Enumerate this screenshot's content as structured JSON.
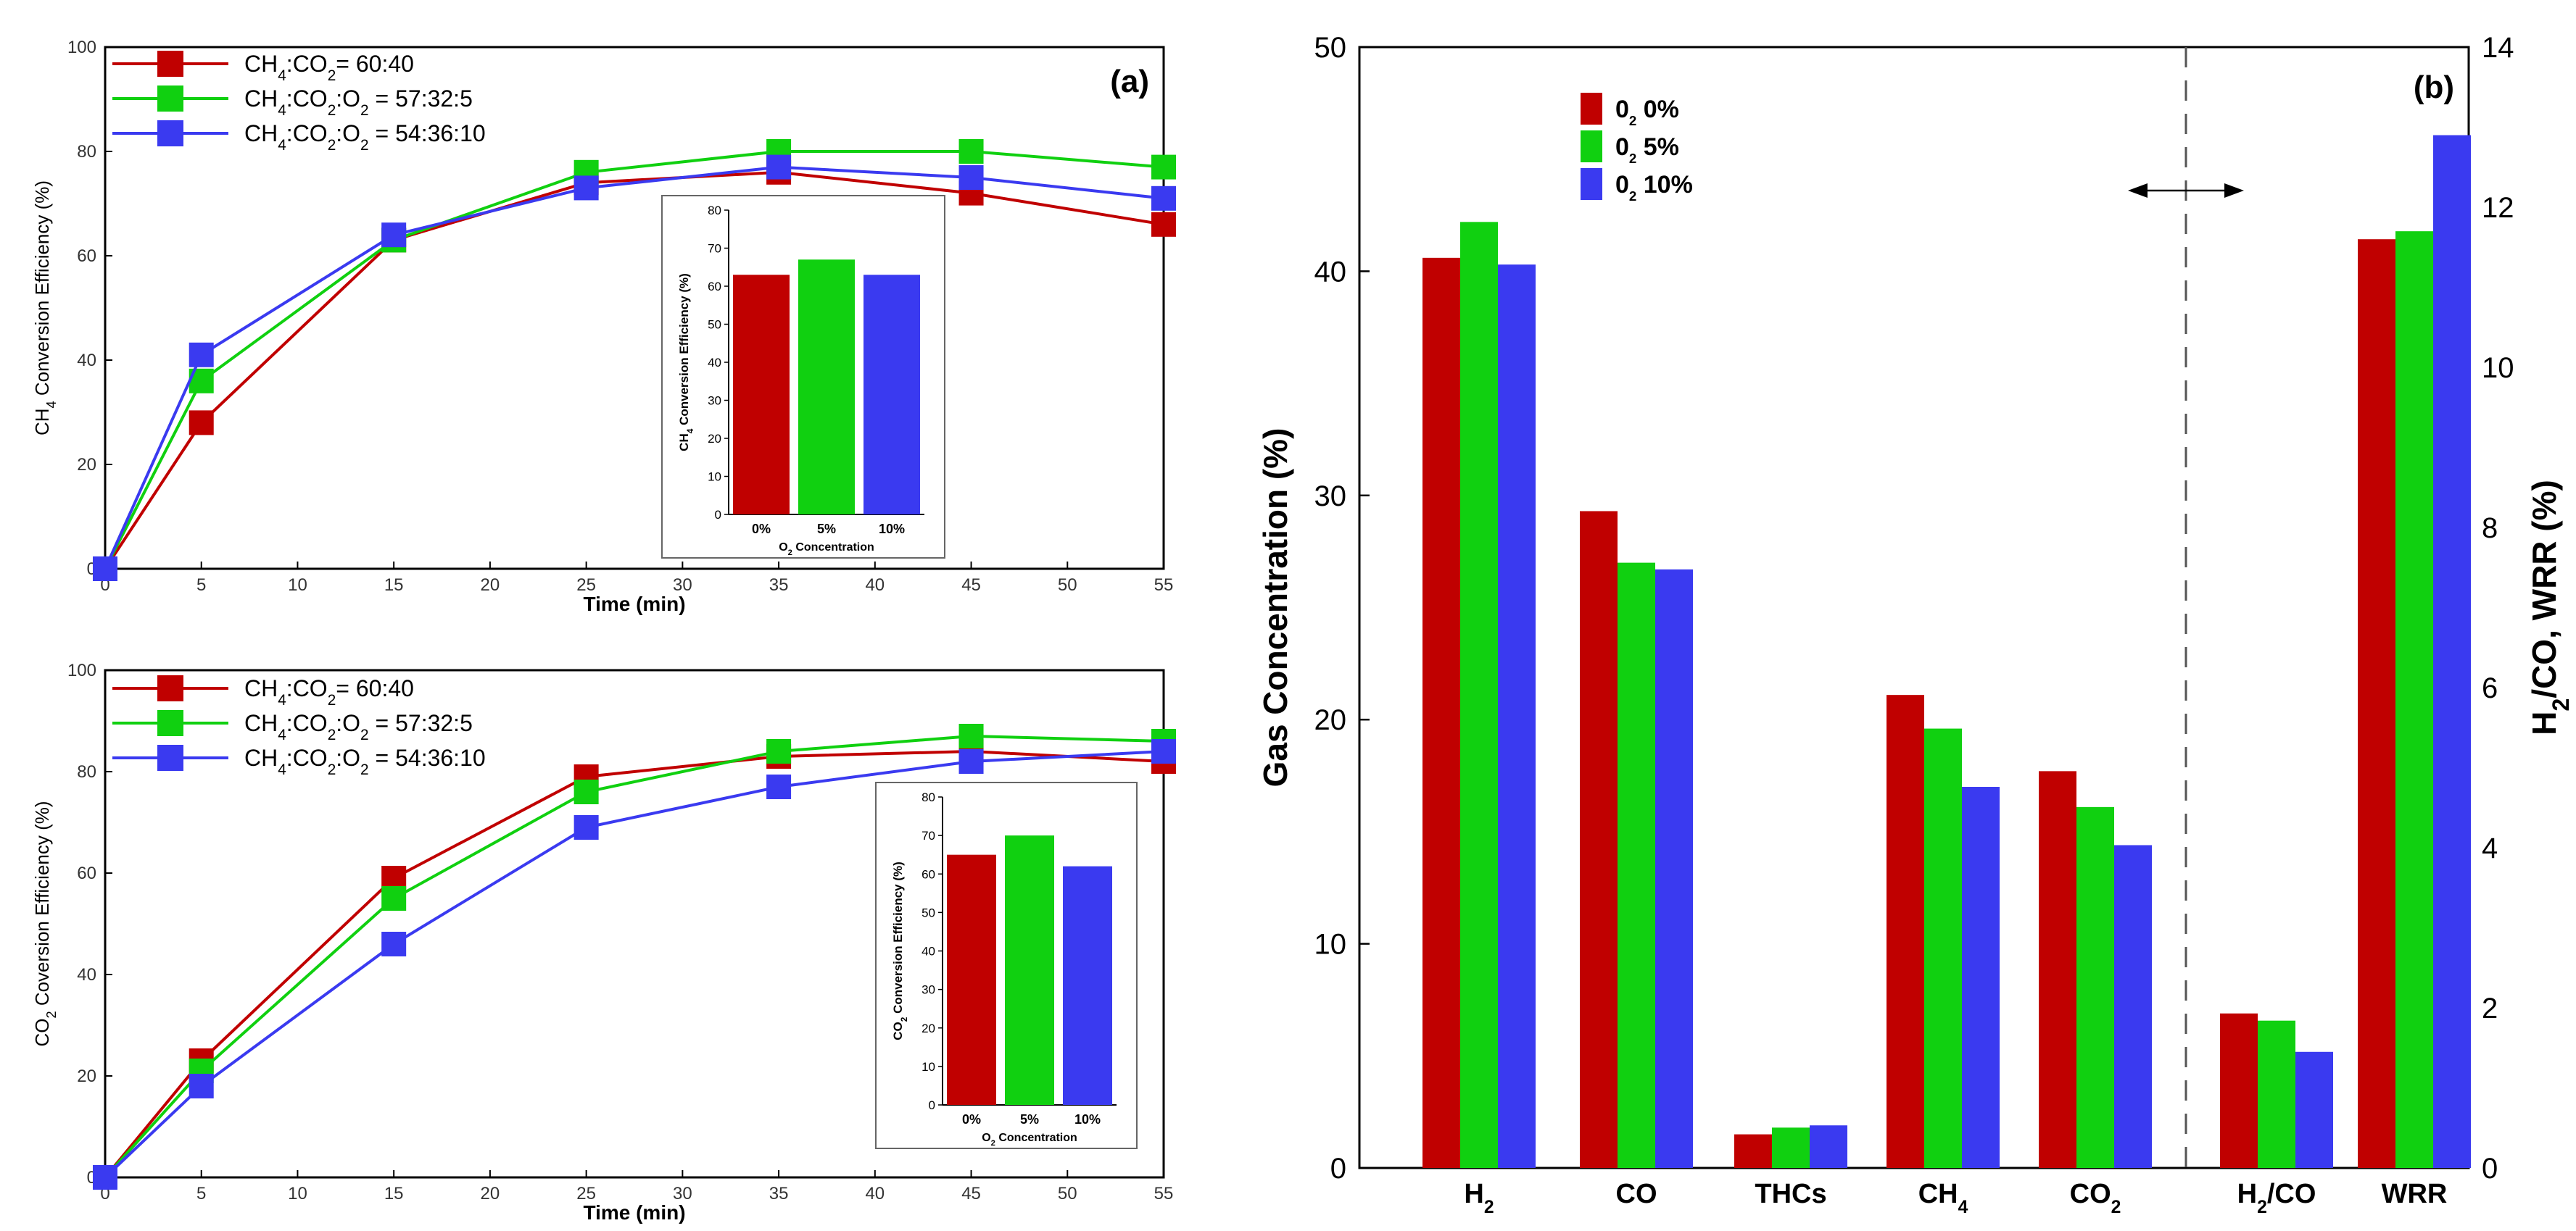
{
  "colors": {
    "red": "#c00000",
    "green": "#10d010",
    "blue": "#3a3af0",
    "axis": "#000000"
  },
  "chart_data": [
    {
      "id": "a_top",
      "type": "line",
      "panel_label": "(a)",
      "xlabel": "Time (min)",
      "ylabel": "CH4 Conversion Efficiency (%)",
      "ylabel_parts": [
        "CH",
        "4",
        " Conversion Efficiency (%)"
      ],
      "xlim": [
        0,
        55
      ],
      "ylim": [
        0,
        100
      ],
      "xticks": [
        0,
        5,
        10,
        15,
        20,
        25,
        30,
        35,
        40,
        45,
        50,
        55
      ],
      "yticks": [
        0,
        20,
        40,
        60,
        80,
        100
      ],
      "x": [
        0,
        5,
        15,
        25,
        35,
        45,
        55
      ],
      "series": [
        {
          "name": "CH4:CO2= 60:40",
          "parts": [
            "CH",
            "4",
            ":CO",
            "2",
            "= 60:40"
          ],
          "color": "red",
          "values": [
            0,
            28,
            63,
            74,
            76,
            72,
            66
          ]
        },
        {
          "name": "CH4:CO2:O2 = 57:32:5",
          "parts": [
            "CH",
            "4",
            ":CO",
            "2",
            ":O",
            "2",
            " = 57:32:5"
          ],
          "color": "green",
          "values": [
            0,
            36,
            63,
            76,
            80,
            80,
            77
          ]
        },
        {
          "name": "CH4:CO2:O2 = 54:36:10",
          "parts": [
            "CH",
            "4",
            ":CO",
            "2",
            ":O",
            "2",
            " = 54:36:10"
          ],
          "color": "blue",
          "values": [
            0,
            41,
            64,
            73,
            77,
            75,
            71
          ]
        }
      ],
      "inset": {
        "type": "bar",
        "categories": [
          "0%",
          "5%",
          "10%"
        ],
        "values": [
          63,
          67,
          63
        ],
        "colors": [
          "red",
          "green",
          "blue"
        ],
        "ylim": [
          0,
          80
        ],
        "yticks": [
          0,
          10,
          20,
          30,
          40,
          50,
          60,
          70,
          80
        ],
        "ylabel": "CH4 Conversion Efficiency (%)",
        "ylabel_parts": [
          "CH",
          "4",
          " Conversion Efficiency (%)"
        ],
        "xlabel": "O2 Concentration",
        "xlabel_parts": [
          "O",
          "2",
          " Concentration"
        ]
      }
    },
    {
      "id": "a_bottom",
      "type": "line",
      "xlabel": "Time (min)",
      "ylabel": "CO2 Coversion Efficiency (%)",
      "ylabel_parts": [
        "CO",
        "2",
        " Coversion Efficiency (%)"
      ],
      "xlim": [
        0,
        55
      ],
      "ylim": [
        0,
        100
      ],
      "xticks": [
        0,
        5,
        10,
        15,
        20,
        25,
        30,
        35,
        40,
        45,
        50,
        55
      ],
      "yticks": [
        0,
        20,
        40,
        60,
        80,
        100
      ],
      "x": [
        0,
        5,
        15,
        25,
        35,
        45,
        55
      ],
      "series": [
        {
          "name": "CH4:CO2= 60:40",
          "parts": [
            "CH",
            "4",
            ":CO",
            "2",
            "= 60:40"
          ],
          "color": "red",
          "values": [
            0,
            23,
            59,
            79,
            83,
            84,
            82
          ]
        },
        {
          "name": "CH4:CO2:O2 = 57:32:5",
          "parts": [
            "CH",
            "4",
            ":CO",
            "2",
            ":O",
            "2",
            " = 57:32:5"
          ],
          "color": "green",
          "values": [
            0,
            21,
            55,
            76,
            84,
            87,
            86
          ]
        },
        {
          "name": "CH4:CO2:O2 = 54:36:10",
          "parts": [
            "CH",
            "4",
            ":CO",
            "2",
            ":O",
            "2",
            " = 54:36:10"
          ],
          "color": "blue",
          "values": [
            0,
            18,
            46,
            69,
            77,
            82,
            84
          ]
        }
      ],
      "inset": {
        "type": "bar",
        "categories": [
          "0%",
          "5%",
          "10%"
        ],
        "values": [
          65,
          70,
          62
        ],
        "colors": [
          "red",
          "green",
          "blue"
        ],
        "ylim": [
          0,
          80
        ],
        "yticks": [
          0,
          10,
          20,
          30,
          40,
          50,
          60,
          70,
          80
        ],
        "ylabel": "CO2 Conversion Efficiency (%)",
        "ylabel_parts": [
          "CO",
          "2",
          " Conversion Efficiency (%)"
        ],
        "xlabel": "O2 Concentration",
        "xlabel_parts": [
          "O",
          "2",
          " Concentration"
        ]
      }
    },
    {
      "id": "b",
      "type": "bar",
      "panel_label": "(b)",
      "ylabel_left": "Gas Concentration (%)",
      "ylabel_right": "H2/CO, WRR (%)",
      "ylabel_right_parts": [
        "H",
        "2",
        "/CO, WRR (%)"
      ],
      "ylim_left": [
        0,
        50
      ],
      "yticks_left": [
        0,
        10,
        20,
        30,
        40,
        50
      ],
      "ylim_right": [
        0,
        14
      ],
      "yticks_right": [
        0,
        2,
        4,
        6,
        8,
        10,
        12,
        14
      ],
      "categories": [
        "H2",
        "CO",
        "THCs",
        "CH4",
        "CO2",
        "H2/CO",
        "WRR"
      ],
      "category_parts": [
        [
          "H",
          "2",
          ""
        ],
        [
          "CO",
          "",
          ""
        ],
        [
          "THCs",
          "",
          ""
        ],
        [
          "CH",
          "4",
          ""
        ],
        [
          "CO",
          "2",
          ""
        ],
        [
          "H",
          "2",
          "/CO"
        ],
        [
          "WRR",
          "",
          ""
        ]
      ],
      "right_axis_categories": [
        "H2/CO",
        "WRR"
      ],
      "series": [
        {
          "name": "O2 0%",
          "parts": [
            "0",
            "2",
            " 0%"
          ],
          "color": "red",
          "values": [
            40.6,
            29.3,
            1.5,
            21.1,
            17.7,
            1.93,
            11.6
          ]
        },
        {
          "name": "O2 5%",
          "parts": [
            "0",
            "2",
            " 5%"
          ],
          "color": "green",
          "values": [
            42.2,
            27.0,
            1.8,
            19.6,
            16.1,
            1.84,
            11.7
          ]
        },
        {
          "name": "O2 10%",
          "parts": [
            "0",
            "2",
            " 10%"
          ],
          "color": "blue",
          "values": [
            40.3,
            26.7,
            1.9,
            17.0,
            14.4,
            1.45,
            12.9
          ]
        }
      ]
    }
  ]
}
